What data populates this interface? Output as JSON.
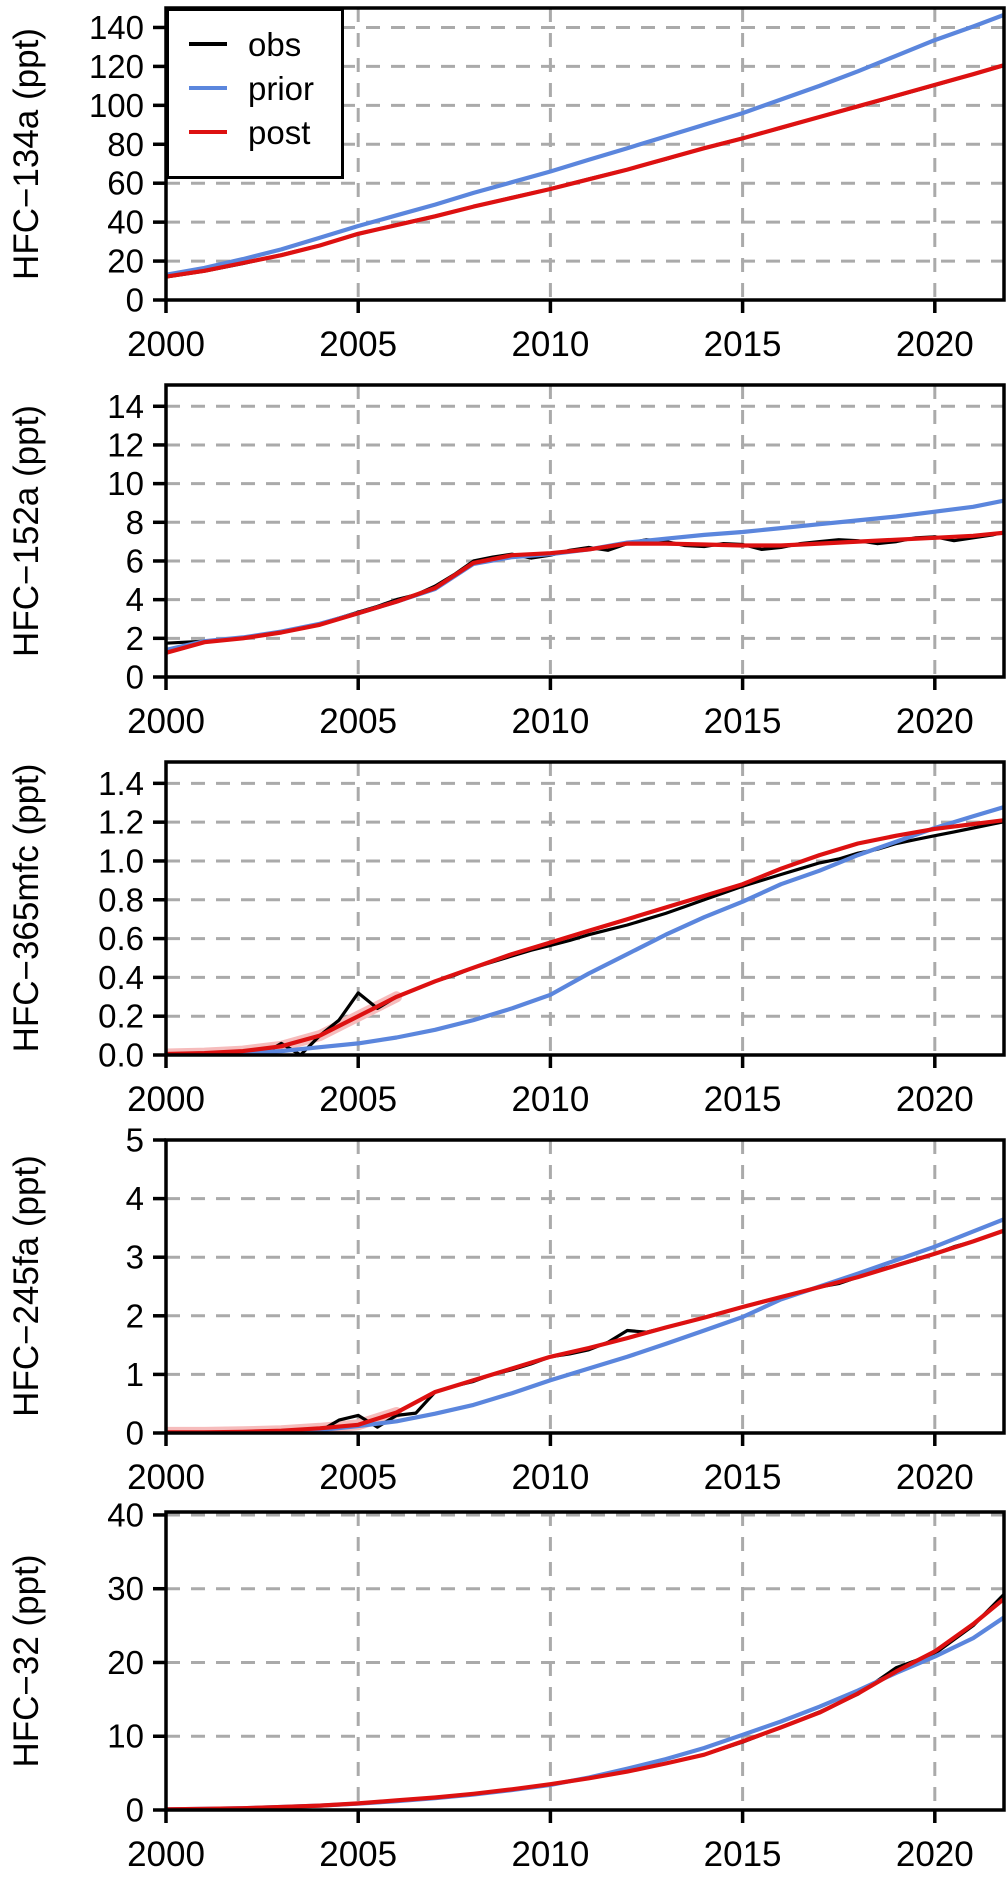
{
  "colors": {
    "obs": "#000000",
    "prior": "#5b86dd",
    "post": "#dd1111",
    "band": "#f6bcbc",
    "grid": "#aaaaaa",
    "axis": "#000000",
    "background": "#ffffff"
  },
  "legend": {
    "entries": [
      {
        "label": "obs",
        "color": "#000000"
      },
      {
        "label": "prior",
        "color": "#5b86dd"
      },
      {
        "label": "post",
        "color": "#dd1111"
      }
    ]
  },
  "x_axis": {
    "ticks": [
      2000,
      2005,
      2010,
      2015,
      2020
    ],
    "tick_labels": [
      "2000",
      "2005",
      "2010",
      "2015",
      "2020"
    ],
    "grid_years": [
      2005,
      2010,
      2015,
      2020
    ],
    "min": 2000,
    "max": 2021.8,
    "years_annual": [
      2000,
      2001,
      2002,
      2003,
      2004,
      2005,
      2006,
      2007,
      2008,
      2009,
      2010,
      2011,
      2012,
      2013,
      2014,
      2015,
      2016,
      2017,
      2018,
      2019,
      2020,
      2021,
      2022
    ],
    "years_semiannual": [
      2000,
      2000.5,
      2001,
      2001.5,
      2002,
      2002.5,
      2003,
      2003.5,
      2004,
      2004.5,
      2005,
      2005.5,
      2006,
      2006.5,
      2007,
      2007.5,
      2008,
      2008.5,
      2009,
      2009.5,
      2010,
      2010.5,
      2011,
      2011.5,
      2012,
      2012.5,
      2013,
      2013.5,
      2014,
      2014.5,
      2015,
      2015.5,
      2016,
      2016.5,
      2017,
      2017.5,
      2018,
      2018.5,
      2019,
      2019.5,
      2020,
      2020.5,
      2021,
      2021.5,
      2022
    ]
  },
  "chart_data": [
    {
      "type": "line",
      "ylabel": "HFC−134a (ppt)",
      "xlabel": "",
      "ylim": [
        0,
        150
      ],
      "yticks": [
        0,
        20,
        40,
        60,
        80,
        100,
        120,
        140
      ],
      "ytick_labels": [
        "0",
        "20",
        "40",
        "60",
        "80",
        "100",
        "120",
        "140"
      ],
      "band_until": null,
      "series": [
        {
          "name": "obs",
          "color": "#000000",
          "x_ref": "annual",
          "values": [
            11.8,
            14.8,
            18.7,
            23.2,
            28.1,
            33.8,
            38.7,
            43.1,
            48.0,
            52.7,
            57.1,
            62.2,
            67.1,
            72.3,
            78.1,
            83.2,
            88.3,
            94.0,
            99.3,
            104.8,
            110.3,
            116.0,
            121.5
          ]
        },
        {
          "name": "prior",
          "color": "#5b86dd",
          "x_ref": "annual",
          "values": [
            13,
            16.5,
            21,
            26,
            32,
            38,
            43.5,
            49,
            55,
            60.5,
            66,
            72,
            78,
            84,
            90,
            96,
            103,
            110,
            117.5,
            125.5,
            133.5,
            140.5,
            148
          ]
        },
        {
          "name": "post",
          "color": "#dd1111",
          "x_ref": "annual",
          "values": [
            12,
            15,
            19,
            23,
            28,
            34,
            38.5,
            43,
            48,
            52.5,
            57,
            62,
            67,
            72.5,
            78,
            83,
            88.5,
            94,
            99.5,
            105,
            110.5,
            116,
            121.8
          ]
        }
      ]
    },
    {
      "type": "line",
      "ylabel": "HFC−152a (ppt)",
      "xlabel": "",
      "ylim": [
        0,
        15.1
      ],
      "yticks": [
        0,
        2,
        4,
        6,
        8,
        10,
        12,
        14
      ],
      "ytick_labels": [
        "0",
        "2",
        "4",
        "6",
        "8",
        "10",
        "12",
        "14"
      ],
      "band_until": null,
      "series": [
        {
          "name": "obs",
          "color": "#000000",
          "x_ref": "semiannual",
          "values": [
            1.75,
            1.8,
            1.85,
            1.95,
            2.0,
            2.2,
            2.35,
            2.55,
            2.75,
            3.05,
            3.35,
            3.65,
            4.0,
            4.25,
            4.7,
            5.3,
            6.0,
            6.2,
            6.35,
            6.15,
            6.3,
            6.55,
            6.7,
            6.55,
            6.9,
            7.1,
            7.0,
            6.8,
            6.75,
            6.9,
            6.85,
            6.6,
            6.7,
            6.9,
            7.0,
            7.1,
            7.05,
            6.9,
            7.0,
            7.2,
            7.25,
            7.05,
            7.2,
            7.35,
            7.6
          ]
        },
        {
          "name": "prior",
          "color": "#5b86dd",
          "x_ref": "annual",
          "values": [
            1.4,
            1.85,
            2.05,
            2.35,
            2.75,
            3.3,
            3.9,
            4.55,
            5.85,
            6.2,
            6.35,
            6.6,
            6.95,
            7.15,
            7.35,
            7.5,
            7.7,
            7.9,
            8.1,
            8.3,
            8.55,
            8.8,
            9.2
          ]
        },
        {
          "name": "post",
          "color": "#dd1111",
          "x_ref": "annual",
          "values": [
            1.25,
            1.8,
            2.0,
            2.3,
            2.7,
            3.3,
            3.9,
            4.6,
            5.9,
            6.3,
            6.4,
            6.6,
            6.9,
            6.9,
            6.85,
            6.8,
            6.8,
            6.9,
            7.0,
            7.1,
            7.2,
            7.3,
            7.5
          ]
        }
      ]
    },
    {
      "type": "line",
      "ylabel": "HFC−365mfc (ppt)",
      "xlabel": "",
      "ylim": [
        0,
        1.51
      ],
      "yticks": [
        0,
        0.2,
        0.4,
        0.6,
        0.8,
        1.0,
        1.2,
        1.4
      ],
      "ytick_labels": [
        "0.0",
        "0.2",
        "0.4",
        "0.6",
        "0.8",
        "1.0",
        "1.2",
        "1.4"
      ],
      "band_until": 2006.5,
      "series": [
        {
          "name": "obs",
          "color": "#000000",
          "x_ref": "semiannual",
          "values": [
            0,
            0,
            0,
            0,
            0,
            0,
            0.06,
            0.0,
            0.1,
            0.18,
            0.32,
            0.24,
            0.3,
            0.34,
            0.38,
            0.41,
            0.45,
            0.48,
            0.51,
            0.54,
            0.565,
            0.59,
            0.62,
            0.645,
            0.67,
            0.7,
            0.73,
            0.765,
            0.8,
            0.835,
            0.87,
            0.9,
            0.93,
            0.96,
            0.99,
            1.01,
            1.04,
            1.06,
            1.09,
            1.11,
            1.13,
            1.15,
            1.17,
            1.19,
            1.21
          ]
        },
        {
          "name": "prior",
          "color": "#5b86dd",
          "x_ref": "annual",
          "values": [
            0,
            0.005,
            0.01,
            0.02,
            0.04,
            0.06,
            0.09,
            0.13,
            0.18,
            0.24,
            0.31,
            0.42,
            0.52,
            0.62,
            0.71,
            0.79,
            0.88,
            0.95,
            1.03,
            1.1,
            1.17,
            1.23,
            1.29
          ]
        },
        {
          "name": "post",
          "color": "#dd1111",
          "x_ref": "annual",
          "values": [
            0.005,
            0.01,
            0.02,
            0.045,
            0.1,
            0.2,
            0.3,
            0.38,
            0.45,
            0.52,
            0.58,
            0.64,
            0.7,
            0.76,
            0.82,
            0.88,
            0.96,
            1.03,
            1.09,
            1.13,
            1.165,
            1.19,
            1.215
          ]
        }
      ]
    },
    {
      "type": "line",
      "ylabel": "HFC−245fa (ppt)",
      "xlabel": "",
      "ylim": [
        0,
        5
      ],
      "yticks": [
        0,
        1,
        2,
        3,
        4,
        5
      ],
      "ytick_labels": [
        "0",
        "1",
        "2",
        "3",
        "4",
        "5"
      ],
      "band_until": 2006.5,
      "series": [
        {
          "name": "obs",
          "color": "#000000",
          "x_ref": "semiannual",
          "values": [
            0,
            0,
            0,
            0,
            0,
            0,
            0,
            0,
            0.03,
            0.22,
            0.3,
            0.1,
            0.3,
            0.34,
            0.7,
            0.8,
            0.88,
            1.0,
            1.08,
            1.18,
            1.3,
            1.35,
            1.42,
            1.55,
            1.75,
            1.72,
            1.8,
            1.88,
            1.97,
            2.06,
            2.15,
            2.24,
            2.32,
            2.4,
            2.49,
            2.55,
            2.66,
            2.78,
            2.86,
            2.95,
            3.06,
            3.18,
            3.27,
            3.38,
            3.5
          ]
        },
        {
          "name": "prior",
          "color": "#5b86dd",
          "x_ref": "annual",
          "values": [
            0,
            0,
            0.01,
            0.02,
            0.05,
            0.12,
            0.2,
            0.33,
            0.48,
            0.68,
            0.9,
            1.1,
            1.3,
            1.52,
            1.75,
            1.98,
            2.28,
            2.5,
            2.72,
            2.95,
            3.18,
            3.44,
            3.7
          ]
        },
        {
          "name": "post",
          "color": "#dd1111",
          "x_ref": "annual",
          "values": [
            0.01,
            0.01,
            0.02,
            0.04,
            0.08,
            0.14,
            0.35,
            0.7,
            0.9,
            1.1,
            1.3,
            1.45,
            1.62,
            1.8,
            1.97,
            2.15,
            2.32,
            2.49,
            2.66,
            2.86,
            3.06,
            3.27,
            3.5
          ]
        }
      ]
    },
    {
      "type": "line",
      "ylabel": "HFC−32 (ppt)",
      "xlabel": "",
      "ylim": [
        0,
        40.4
      ],
      "yticks": [
        0,
        10,
        20,
        30,
        40
      ],
      "ytick_labels": [
        "0",
        "10",
        "20",
        "30",
        "40"
      ],
      "band_until": null,
      "series": [
        {
          "name": "obs",
          "color": "#000000",
          "x_ref": "annual",
          "values": [
            0.1,
            0.15,
            0.25,
            0.4,
            0.6,
            0.9,
            1.3,
            1.7,
            2.2,
            2.8,
            3.5,
            4.3,
            5.2,
            6.3,
            7.5,
            9.2,
            11.2,
            13.3,
            15.7,
            19.3,
            21.2,
            25.0,
            30.3
          ]
        },
        {
          "name": "prior",
          "color": "#5b86dd",
          "x_ref": "annual",
          "values": [
            0.1,
            0.15,
            0.25,
            0.4,
            0.6,
            0.85,
            1.2,
            1.6,
            2.1,
            2.7,
            3.4,
            4.4,
            5.6,
            6.9,
            8.4,
            10.2,
            12.0,
            14.0,
            16.2,
            18.6,
            20.8,
            23.3,
            26.8
          ]
        },
        {
          "name": "post",
          "color": "#dd1111",
          "x_ref": "annual",
          "values": [
            0.1,
            0.15,
            0.25,
            0.4,
            0.6,
            0.9,
            1.3,
            1.7,
            2.2,
            2.8,
            3.5,
            4.3,
            5.2,
            6.3,
            7.5,
            9.3,
            11.2,
            13.2,
            15.8,
            18.8,
            21.5,
            25.2,
            29.5
          ]
        }
      ]
    }
  ]
}
